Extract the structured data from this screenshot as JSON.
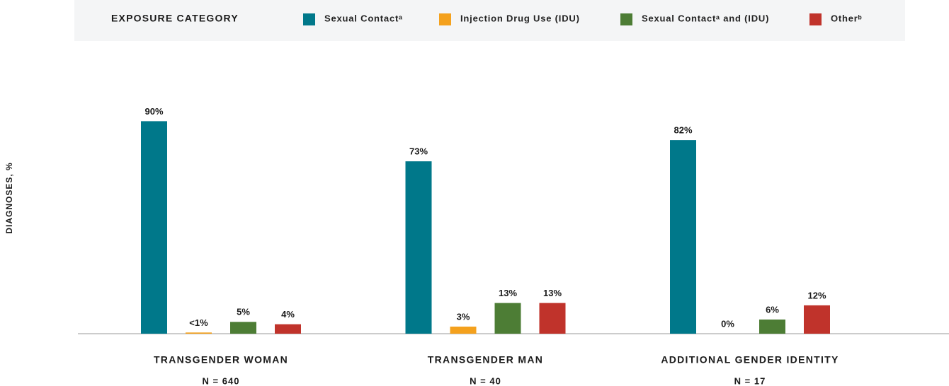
{
  "chart_data": {
    "type": "bar",
    "legend_title": "EXPOSURE CATEGORY",
    "y_label": "DIAGNOSES, %",
    "categories": [
      "TRANSGENDER WOMAN",
      "TRANSGENDER MAN",
      "ADDITIONAL GENDER IDENTITY"
    ],
    "category_notes": [
      "N = 640",
      "N = 40",
      "N = 17"
    ],
    "series": [
      {
        "name": "Sexual Contactᵃ",
        "color": "#00788a",
        "values": [
          90,
          73,
          82
        ],
        "value_labels": [
          "90%",
          "73%",
          "82%"
        ]
      },
      {
        "name": "Injection Drug Use (IDU)",
        "color": "#f4a11d",
        "values": [
          0.5,
          3,
          0
        ],
        "value_labels": [
          "<1%",
          "3%",
          "0%"
        ]
      },
      {
        "name": "Sexual Contactᵃ and (IDU)",
        "color": "#4d7d35",
        "values": [
          5,
          13,
          6
        ],
        "value_labels": [
          "5%",
          "13%",
          "6%"
        ]
      },
      {
        "name": "Otherᵇ",
        "color": "#c0332b",
        "values": [
          4,
          13,
          12
        ],
        "value_labels": [
          "4%",
          "13%",
          "12%"
        ]
      }
    ],
    "ylim": [
      0,
      100
    ],
    "legend": "top"
  }
}
